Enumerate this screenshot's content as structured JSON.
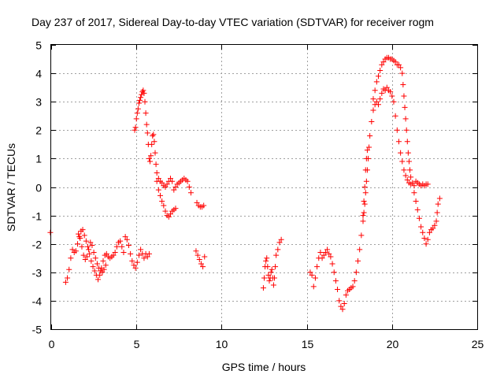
{
  "chart_data": {
    "type": "scatter",
    "title": "Day 237 of 2017, Sidereal Day-to-day VTEC variation (SDTVAR) for receiver rogm",
    "xlabel": "GPS time / hours",
    "ylabel": "SDTVAR / TECUs",
    "xlim": [
      0,
      25
    ],
    "ylim": [
      -5,
      5
    ],
    "xticks": [
      "0",
      "5",
      "10",
      "15",
      "20",
      "25"
    ],
    "yticks": [
      "5",
      "4",
      "3",
      "2",
      "1",
      "0",
      "-1",
      "-2",
      "-3",
      "-4",
      "-5"
    ],
    "grid": true,
    "marker": "plus",
    "colors": {
      "series": "#ff0000",
      "grid": "#a0a0a0",
      "axis": "#000000"
    },
    "series": [
      {
        "name": "SDTVAR",
        "points": [
          [
            -0.05,
            -1.6
          ],
          [
            0.85,
            -3.35
          ],
          [
            0.95,
            -3.2
          ],
          [
            1.05,
            -2.9
          ],
          [
            1.15,
            -2.5
          ],
          [
            1.25,
            -2.2
          ],
          [
            1.35,
            -2.3
          ],
          [
            1.45,
            -2.25
          ],
          [
            1.55,
            -2.0
          ],
          [
            1.65,
            -1.75
          ],
          [
            1.75,
            -1.55
          ],
          [
            1.85,
            -1.5
          ],
          [
            1.95,
            -1.7
          ],
          [
            2.05,
            -1.9
          ],
          [
            2.15,
            -2.1
          ],
          [
            2.25,
            -2.35
          ],
          [
            2.35,
            -2.6
          ],
          [
            2.45,
            -2.8
          ],
          [
            2.55,
            -2.95
          ],
          [
            2.65,
            -3.1
          ],
          [
            2.75,
            -3.25
          ],
          [
            2.85,
            -3.1
          ],
          [
            2.95,
            -2.85
          ],
          [
            3.05,
            -2.6
          ],
          [
            3.15,
            -2.4
          ],
          [
            3.25,
            -2.35
          ],
          [
            3.35,
            -2.45
          ],
          [
            3.45,
            -2.5
          ],
          [
            3.55,
            -2.45
          ],
          [
            3.65,
            -2.4
          ],
          [
            3.75,
            -2.3
          ],
          [
            3.85,
            -2.1
          ],
          [
            3.95,
            -1.95
          ],
          [
            4.05,
            -1.9
          ],
          [
            4.15,
            -2.1
          ],
          [
            4.25,
            -2.3
          ],
          [
            1.6,
            -1.65
          ],
          [
            1.7,
            -1.8
          ],
          [
            1.8,
            -2.1
          ],
          [
            1.9,
            -2.4
          ],
          [
            2.0,
            -2.55
          ],
          [
            2.1,
            -2.45
          ],
          [
            2.2,
            -2.2
          ],
          [
            2.3,
            -1.95
          ],
          [
            2.4,
            -2.05
          ],
          [
            2.5,
            -2.3
          ],
          [
            2.6,
            -2.5
          ],
          [
            2.7,
            -2.7
          ],
          [
            2.8,
            -2.85
          ],
          [
            2.9,
            -2.95
          ],
          [
            3.0,
            -3.0
          ],
          [
            3.1,
            -2.9
          ],
          [
            3.2,
            -2.75
          ],
          [
            4.35,
            -1.75
          ],
          [
            4.45,
            -1.85
          ],
          [
            4.55,
            -2.05
          ],
          [
            4.65,
            -2.35
          ],
          [
            4.75,
            -2.6
          ],
          [
            4.85,
            -2.75
          ],
          [
            4.95,
            -2.85
          ],
          [
            5.05,
            -2.65
          ],
          [
            5.15,
            -2.4
          ],
          [
            5.25,
            -2.2
          ],
          [
            5.35,
            -2.35
          ],
          [
            5.45,
            -2.5
          ],
          [
            5.55,
            -2.35
          ],
          [
            5.65,
            -2.45
          ],
          [
            5.75,
            -2.35
          ],
          [
            4.9,
            2.0
          ],
          [
            4.95,
            2.1
          ],
          [
            5.0,
            2.4
          ],
          [
            5.05,
            2.6
          ],
          [
            5.1,
            2.75
          ],
          [
            5.15,
            2.95
          ],
          [
            5.2,
            3.05
          ],
          [
            5.25,
            3.15
          ],
          [
            5.3,
            3.25
          ],
          [
            5.35,
            3.35
          ],
          [
            5.4,
            3.4
          ],
          [
            5.45,
            3.3
          ],
          [
            5.5,
            3.0
          ],
          [
            5.55,
            2.6
          ],
          [
            5.6,
            2.2
          ],
          [
            5.65,
            1.9
          ],
          [
            5.7,
            1.5
          ],
          [
            5.75,
            1.0
          ],
          [
            5.8,
            0.9
          ],
          [
            5.85,
            1.1
          ],
          [
            5.9,
            1.5
          ],
          [
            5.95,
            1.8
          ],
          [
            6.0,
            1.85
          ],
          [
            6.05,
            1.6
          ],
          [
            6.1,
            1.2
          ],
          [
            6.15,
            0.8
          ],
          [
            6.2,
            0.5
          ],
          [
            6.3,
            0.3
          ],
          [
            6.4,
            0.2
          ],
          [
            6.5,
            0.15
          ],
          [
            6.6,
            0.05
          ],
          [
            6.7,
            0.0
          ],
          [
            6.8,
            0.1
          ],
          [
            6.9,
            0.2
          ],
          [
            7.0,
            0.3
          ],
          [
            7.1,
            0.2
          ],
          [
            7.2,
            -0.1
          ],
          [
            7.3,
            0.0
          ],
          [
            7.4,
            0.1
          ],
          [
            7.5,
            0.15
          ],
          [
            7.6,
            0.2
          ],
          [
            7.7,
            0.25
          ],
          [
            7.8,
            0.3
          ],
          [
            7.9,
            0.25
          ],
          [
            8.0,
            0.2
          ],
          [
            8.1,
            0.0
          ],
          [
            8.2,
            -0.2
          ],
          [
            6.2,
            0.2
          ],
          [
            6.3,
            -0.1
          ],
          [
            6.4,
            -0.3
          ],
          [
            6.5,
            -0.5
          ],
          [
            6.6,
            -0.65
          ],
          [
            6.7,
            -0.85
          ],
          [
            6.8,
            -1.0
          ],
          [
            6.9,
            -1.05
          ],
          [
            7.0,
            -0.95
          ],
          [
            7.1,
            -0.85
          ],
          [
            7.2,
            -0.8
          ],
          [
            7.3,
            -0.75
          ],
          [
            8.55,
            -0.55
          ],
          [
            8.65,
            -0.65
          ],
          [
            8.75,
            -0.7
          ],
          [
            8.85,
            -0.7
          ],
          [
            8.95,
            -0.65
          ],
          [
            8.5,
            -2.25
          ],
          [
            8.6,
            -2.4
          ],
          [
            8.7,
            -2.55
          ],
          [
            8.8,
            -2.7
          ],
          [
            8.9,
            -2.8
          ],
          [
            9.0,
            -2.45
          ],
          [
            12.45,
            -3.55
          ],
          [
            12.5,
            -3.2
          ],
          [
            12.55,
            -2.8
          ],
          [
            12.6,
            -2.6
          ],
          [
            12.65,
            -2.5
          ],
          [
            12.7,
            -2.8
          ],
          [
            12.75,
            -3.1
          ],
          [
            12.8,
            -3.3
          ],
          [
            12.85,
            -3.2
          ],
          [
            12.9,
            -3.0
          ],
          [
            12.95,
            -2.9
          ],
          [
            13.0,
            -3.2
          ],
          [
            13.05,
            -3.45
          ],
          [
            13.1,
            -3.2
          ],
          [
            13.15,
            -2.8
          ],
          [
            13.2,
            -2.4
          ],
          [
            13.3,
            -2.2
          ],
          [
            13.4,
            -1.95
          ],
          [
            13.5,
            -1.85
          ],
          [
            15.2,
            -3.0
          ],
          [
            15.3,
            -3.1
          ],
          [
            15.4,
            -3.5
          ],
          [
            15.5,
            -3.2
          ],
          [
            15.6,
            -2.8
          ],
          [
            15.7,
            -2.5
          ],
          [
            15.8,
            -2.3
          ],
          [
            15.9,
            -2.5
          ],
          [
            16.0,
            -2.4
          ],
          [
            16.1,
            -2.3
          ],
          [
            16.2,
            -2.2
          ],
          [
            16.3,
            -2.35
          ],
          [
            16.4,
            -2.45
          ],
          [
            16.5,
            -2.7
          ],
          [
            16.6,
            -3.0
          ],
          [
            16.7,
            -3.3
          ],
          [
            16.8,
            -3.6
          ],
          [
            16.9,
            -4.0
          ],
          [
            17.0,
            -4.2
          ],
          [
            17.1,
            -4.3
          ],
          [
            17.2,
            -4.1
          ],
          [
            17.3,
            -3.8
          ],
          [
            17.4,
            -3.65
          ],
          [
            17.5,
            -3.6
          ],
          [
            17.6,
            -3.55
          ],
          [
            17.7,
            -3.5
          ],
          [
            17.8,
            -3.3
          ],
          [
            17.9,
            -3.0
          ],
          [
            18.0,
            -2.6
          ],
          [
            18.1,
            -2.2
          ],
          [
            18.2,
            -1.7
          ],
          [
            18.3,
            -1.2
          ],
          [
            18.35,
            -0.5
          ],
          [
            18.4,
            0.0
          ],
          [
            18.45,
            0.6
          ],
          [
            18.5,
            1.0
          ],
          [
            18.55,
            1.3
          ],
          [
            18.3,
            -1.0
          ],
          [
            18.35,
            -0.9
          ],
          [
            18.4,
            -0.6
          ],
          [
            18.45,
            -0.2
          ],
          [
            18.5,
            0.2
          ],
          [
            18.55,
            0.6
          ],
          [
            18.6,
            1.0
          ],
          [
            18.65,
            1.4
          ],
          [
            18.7,
            1.8
          ],
          [
            18.8,
            2.3
          ],
          [
            18.9,
            2.7
          ],
          [
            19.0,
            2.9
          ],
          [
            19.1,
            3.0
          ],
          [
            19.2,
            2.9
          ],
          [
            19.3,
            3.1
          ],
          [
            19.4,
            3.3
          ],
          [
            19.5,
            3.45
          ],
          [
            19.6,
            3.4
          ],
          [
            19.7,
            3.5
          ],
          [
            19.8,
            3.4
          ],
          [
            19.9,
            3.35
          ],
          [
            20.0,
            3.2
          ],
          [
            20.1,
            3.0
          ],
          [
            20.2,
            2.5
          ],
          [
            20.3,
            2.0
          ],
          [
            20.4,
            1.6
          ],
          [
            20.5,
            1.2
          ],
          [
            20.6,
            0.9
          ],
          [
            20.7,
            0.6
          ],
          [
            20.8,
            0.4
          ],
          [
            20.9,
            0.25
          ],
          [
            21.0,
            0.15
          ],
          [
            21.1,
            0.1
          ],
          [
            18.9,
            3.1
          ],
          [
            19.0,
            3.4
          ],
          [
            19.1,
            3.7
          ],
          [
            19.2,
            3.9
          ],
          [
            19.3,
            4.1
          ],
          [
            19.4,
            4.3
          ],
          [
            19.5,
            4.4
          ],
          [
            19.6,
            4.5
          ],
          [
            19.7,
            4.55
          ],
          [
            19.8,
            4.55
          ],
          [
            19.9,
            4.5
          ],
          [
            20.0,
            4.5
          ],
          [
            20.1,
            4.45
          ],
          [
            20.2,
            4.4
          ],
          [
            20.3,
            4.3
          ],
          [
            20.4,
            4.3
          ],
          [
            20.5,
            4.2
          ],
          [
            20.6,
            4.0
          ],
          [
            20.65,
            3.6
          ],
          [
            20.7,
            3.2
          ],
          [
            20.75,
            2.8
          ],
          [
            20.8,
            2.4
          ],
          [
            20.85,
            2.0
          ],
          [
            20.9,
            1.6
          ],
          [
            20.95,
            1.2
          ],
          [
            21.0,
            0.9
          ],
          [
            21.05,
            0.6
          ],
          [
            21.1,
            0.35
          ],
          [
            21.2,
            0.15
          ],
          [
            21.3,
            0.05
          ],
          [
            21.4,
            0.2
          ],
          [
            21.5,
            0.15
          ],
          [
            21.6,
            0.1
          ],
          [
            21.7,
            0.05
          ],
          [
            21.8,
            0.1
          ],
          [
            21.9,
            0.05
          ],
          [
            22.0,
            0.1
          ],
          [
            22.1,
            0.1
          ],
          [
            21.3,
            -0.2
          ],
          [
            21.4,
            -0.5
          ],
          [
            21.5,
            -0.8
          ],
          [
            21.6,
            -1.1
          ],
          [
            21.7,
            -1.4
          ],
          [
            21.8,
            -1.6
          ],
          [
            21.9,
            -1.8
          ],
          [
            22.0,
            -2.0
          ],
          [
            22.1,
            -1.85
          ],
          [
            22.2,
            -1.6
          ],
          [
            22.3,
            -1.5
          ],
          [
            22.4,
            -1.45
          ],
          [
            22.5,
            -1.35
          ],
          [
            22.6,
            -1.2
          ],
          [
            22.65,
            -0.9
          ],
          [
            22.7,
            -0.6
          ],
          [
            22.8,
            -0.4
          ]
        ]
      }
    ]
  }
}
